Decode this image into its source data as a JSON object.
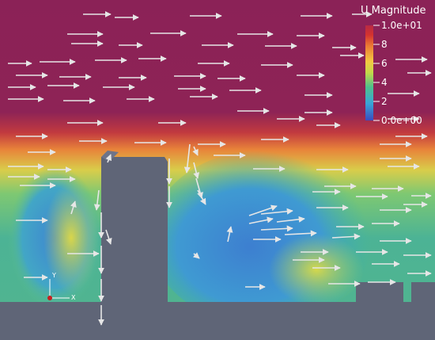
{
  "legend": {
    "title": "U Magnitude",
    "max_label": "1.0e+01",
    "min_label": "0.0e+00",
    "ticks": [
      {
        "value": 8,
        "label": "8"
      },
      {
        "value": 6,
        "label": "6"
      },
      {
        "value": 4,
        "label": "4"
      },
      {
        "value": 2,
        "label": "2"
      }
    ],
    "range": [
      0,
      10
    ],
    "colormap": [
      "#3b4cc0",
      "#39a5d6",
      "#4fc08d",
      "#c2d84a",
      "#f3c942",
      "#ec7d33",
      "#d4322f",
      "#9b2a4a"
    ]
  },
  "orientation_axes": {
    "x_label": "X",
    "y_label": "Y"
  },
  "colors": {
    "background_flow": "#8b2257",
    "solid_geometry": "#5f6577",
    "vector_glyph": "#e6e6e6"
  }
}
